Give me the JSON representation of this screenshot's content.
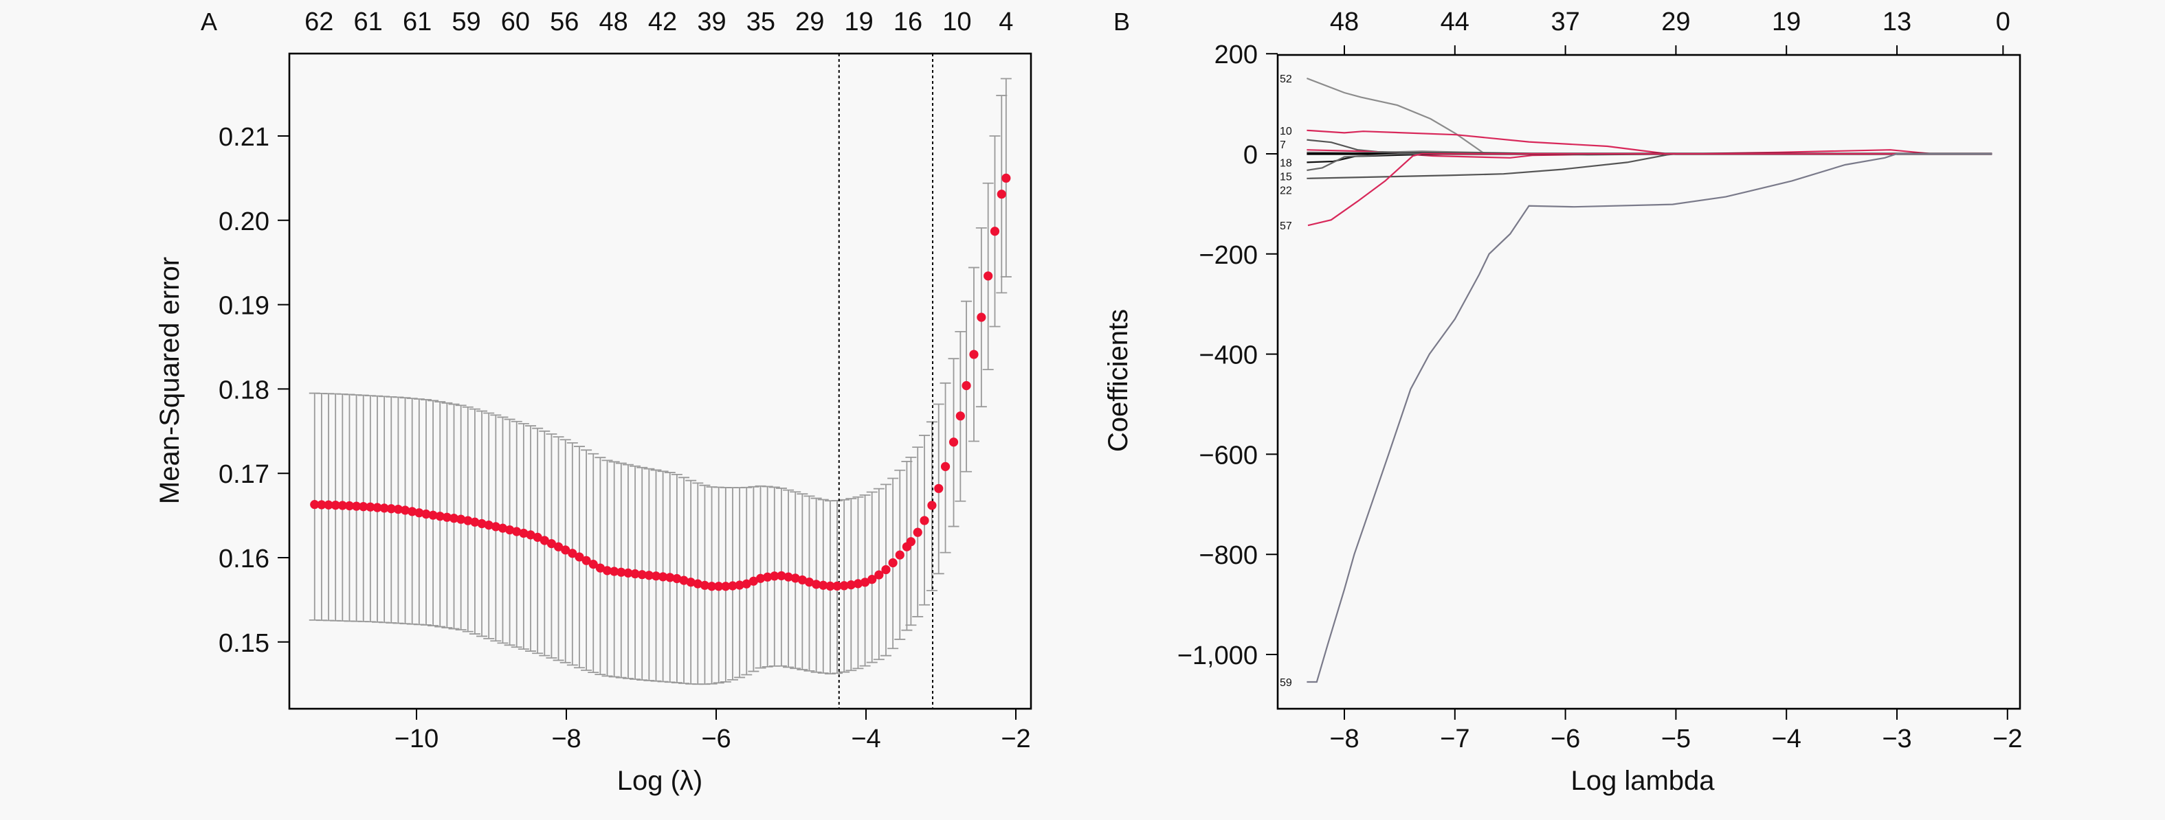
{
  "chart_data": [
    {
      "panel": "A",
      "type": "scatter",
      "xlabel": "Log (λ)",
      "ylabel": "Mean-Squared error",
      "xlim": [
        -11.6,
        -1.9
      ],
      "ylim": [
        0.1425,
        0.2195
      ],
      "xticks": [
        -10,
        -8,
        -6,
        -4,
        -2
      ],
      "xtick_labels": [
        "−10",
        "−8",
        "−6",
        "−4",
        "−2"
      ],
      "yticks": [
        0.15,
        0.16,
        0.17,
        0.18,
        0.19,
        0.2,
        0.21
      ],
      "ytick_labels": [
        "0.15",
        "0.16",
        "0.17",
        "0.18",
        "0.19",
        "0.20",
        "0.21"
      ],
      "top_labels": [
        "62",
        "61",
        "61",
        "59",
        "60",
        "56",
        "48",
        "42",
        "39",
        "35",
        "29",
        "19",
        "16",
        "10",
        "4"
      ],
      "top_label_range": [
        -11.3,
        -2.13
      ],
      "vlines": [
        -4.36,
        -3.11
      ],
      "grid": false,
      "point_color": "#ee1133",
      "errorbar_color": "#9a9a9a",
      "x": [
        -11.36,
        -11.0,
        -10.6,
        -10.2,
        -9.83,
        -9.37,
        -8.9,
        -8.43,
        -7.96,
        -7.72,
        -7.49,
        -7.0,
        -6.56,
        -6.3,
        -6.09,
        -5.85,
        -5.62,
        -5.39,
        -5.16,
        -4.9,
        -4.65,
        -4.45,
        -4.25,
        -4.05,
        -3.96,
        -3.87,
        -3.77,
        -3.68,
        -3.59,
        -3.5,
        -3.4,
        -3.31,
        -3.22,
        -3.12,
        -3.03,
        -2.94,
        -2.83,
        -2.74,
        -2.66,
        -2.56,
        -2.46,
        -2.37,
        -2.28,
        -2.19,
        -2.13
      ],
      "mean": [
        0.1663,
        0.1662,
        0.166,
        0.1657,
        0.1651,
        0.1645,
        0.1636,
        0.1626,
        0.1607,
        0.1596,
        0.1585,
        0.158,
        0.1576,
        0.157,
        0.1566,
        0.1566,
        0.1568,
        0.1576,
        0.1579,
        0.1575,
        0.1568,
        0.1566,
        0.1567,
        0.157,
        0.1572,
        0.1577,
        0.1583,
        0.159,
        0.1599,
        0.1608,
        0.1619,
        0.163,
        0.1644,
        0.1662,
        0.1682,
        0.1708,
        0.1737,
        0.1768,
        0.1804,
        0.1841,
        0.1885,
        0.1934,
        0.1987,
        0.2031,
        0.205
      ],
      "lower": [
        0.1526,
        0.1525,
        0.1524,
        0.1522,
        0.152,
        0.1514,
        0.15,
        0.1488,
        0.1474,
        0.1466,
        0.146,
        0.1455,
        0.1452,
        0.145,
        0.145,
        0.1453,
        0.146,
        0.147,
        0.1472,
        0.1468,
        0.1464,
        0.1462,
        0.1465,
        0.147,
        0.1474,
        0.1478,
        0.1481,
        0.1488,
        0.1498,
        0.1509,
        0.152,
        0.153,
        0.1544,
        0.1561,
        0.1581,
        0.1606,
        0.1637,
        0.1667,
        0.1702,
        0.1738,
        0.1779,
        0.1823,
        0.1874,
        0.1914,
        0.1933
      ],
      "upper": [
        0.1795,
        0.1794,
        0.1792,
        0.179,
        0.1787,
        0.178,
        0.1768,
        0.1755,
        0.1738,
        0.1727,
        0.1716,
        0.1707,
        0.17,
        0.169,
        0.1684,
        0.1683,
        0.1683,
        0.1685,
        0.1683,
        0.1677,
        0.167,
        0.1667,
        0.1669,
        0.1673,
        0.1676,
        0.168,
        0.1684,
        0.1691,
        0.1698,
        0.171,
        0.1719,
        0.1731,
        0.1745,
        0.1761,
        0.1782,
        0.1807,
        0.1836,
        0.1868,
        0.1904,
        0.1944,
        0.1991,
        0.2044,
        0.21,
        0.2148,
        0.2168
      ]
    },
    {
      "panel": "B",
      "type": "line",
      "xlabel": "Log lambda",
      "ylabel": "Coefficients",
      "xlim": [
        -8.6,
        -1.9
      ],
      "ylim": [
        -1110,
        205
      ],
      "xticks": [
        -8,
        -7,
        -6,
        -5,
        -4,
        -3,
        -2
      ],
      "xtick_labels": [
        "−8",
        "−7",
        "−6",
        "−5",
        "−4",
        "−3",
        "−2"
      ],
      "yticks": [
        200,
        0,
        -200,
        -400,
        -600,
        -800,
        -1000
      ],
      "ytick_labels": [
        "200",
        "0",
        "−200",
        "−400",
        "−600",
        "−800",
        "−1,000"
      ],
      "top_ticks": [
        -8,
        -7,
        -6,
        -5,
        -4,
        -3,
        -2.04
      ],
      "top_labels": [
        "48",
        "44",
        "37",
        "29",
        "19",
        "13",
        "0"
      ],
      "grid": false,
      "series": [
        {
          "name": "52",
          "color": "#8c8c8c",
          "x": [
            -8.34,
            -8.0,
            -7.85,
            -7.52,
            -7.22,
            -6.99,
            -6.75,
            -6.7,
            -2.14
          ],
          "y": [
            151,
            122,
            113,
            97,
            70,
            40,
            3,
            0,
            0
          ]
        },
        {
          "name": "10",
          "color": "#d8285a",
          "x": [
            -8.34,
            -8.0,
            -7.83,
            -6.99,
            -6.33,
            -5.62,
            -5.08,
            -4.9,
            -4.07,
            -3.06,
            -2.68,
            -2.14
          ],
          "y": [
            47,
            42,
            45,
            38,
            24,
            15,
            0,
            0,
            3,
            8,
            0,
            0
          ]
        },
        {
          "name": "7",
          "color": "#555555",
          "x": [
            -8.34,
            -8.12,
            -7.88,
            -7.7,
            -6.5,
            -2.14
          ],
          "y": [
            28,
            23,
            8,
            4,
            0,
            0
          ]
        },
        {
          "name": "",
          "color": "#d8285a",
          "x": [
            -8.34,
            -7.8,
            -7.2,
            -6.5,
            -6.3,
            -5.5,
            -2.14
          ],
          "y": [
            8,
            5,
            -4,
            -8,
            -3,
            0,
            0
          ]
        },
        {
          "name": "",
          "color": "#777777",
          "x": [
            -8.34,
            -7.9,
            -7.3,
            -6.6,
            -5.8,
            -5.0,
            -2.14
          ],
          "y": [
            3,
            2,
            5,
            2,
            -2,
            0,
            0
          ]
        },
        {
          "name": "",
          "color": "#000000",
          "x": [
            -8.34,
            -2.14
          ],
          "y": [
            0,
            0
          ]
        },
        {
          "name": "18",
          "color": "#111111",
          "x": [
            -8.34,
            -8.1,
            -7.9,
            -7.4,
            -7.0,
            -2.14
          ],
          "y": [
            -17,
            -15,
            -5,
            -2,
            0,
            0
          ]
        },
        {
          "name": "15",
          "color": "#666666",
          "x": [
            -8.34,
            -8.2,
            -8.0,
            -7.5,
            -2.14
          ],
          "y": [
            -33,
            -28,
            -6,
            0,
            0
          ]
        },
        {
          "name": "22",
          "color": "#555555",
          "x": [
            -8.34,
            -7.07,
            -6.56,
            -6.03,
            -5.44,
            -5.08,
            -5.0,
            -2.14
          ],
          "y": [
            -49,
            -43,
            -40,
            -31,
            -17,
            -2,
            0,
            0
          ]
        },
        {
          "name": "57",
          "color": "#d8285a",
          "x": [
            -8.33,
            -8.12,
            -7.88,
            -7.63,
            -7.38,
            -7.3,
            -2.14
          ],
          "y": [
            -143,
            -132,
            -95,
            -54,
            -4,
            0,
            0
          ]
        },
        {
          "name": "59",
          "color": "#7a7a8a",
          "x": [
            -8.34,
            -8.25,
            -8.15,
            -8.0,
            -7.91,
            -7.6,
            -7.4,
            -7.23,
            -7.0,
            -6.78,
            -6.69,
            -6.5,
            -6.33,
            -5.92,
            -5.03,
            -4.55,
            -3.95,
            -3.47,
            -3.11,
            -3.0,
            -2.14
          ],
          "y": [
            -1055,
            -1055,
            -980,
            -870,
            -800,
            -600,
            -470,
            -400,
            -330,
            -241,
            -200,
            -160,
            -104,
            -106,
            -101,
            -86,
            -54,
            -22,
            -8,
            0,
            0
          ]
        }
      ]
    }
  ]
}
